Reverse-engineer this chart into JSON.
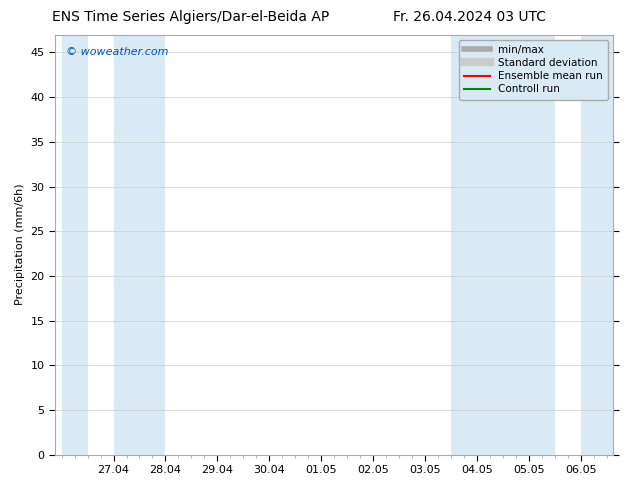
{
  "title_left": "ENS Time Series Algiers/Dar-el-Beida AP",
  "title_right": "Fr. 26.04.2024 03 UTC",
  "ylabel": "Precipitation (mm/6h)",
  "xlabel": "",
  "ylim": [
    0,
    47
  ],
  "yticks": [
    0,
    5,
    10,
    15,
    20,
    25,
    30,
    35,
    40,
    45
  ],
  "xtick_labels": [
    "27.04",
    "28.04",
    "29.04",
    "30.04",
    "01.05",
    "02.05",
    "03.05",
    "04.05",
    "05.05",
    "06.05"
  ],
  "xtick_positions": [
    1,
    2,
    3,
    4,
    5,
    6,
    7,
    8,
    9,
    10
  ],
  "xlim": [
    -0.125,
    10.625
  ],
  "watermark": "© woweather.com",
  "watermark_color": "#0055bb",
  "background_color": "#ffffff",
  "plot_bg_color": "#ffffff",
  "shaded_bands": [
    [
      0.0,
      0.5
    ],
    [
      1.0,
      2.0
    ],
    [
      7.5,
      8.5
    ],
    [
      8.5,
      9.5
    ],
    [
      10.0,
      10.625
    ]
  ],
  "shaded_color": "#daeaf5",
  "legend_items": [
    {
      "label": "min/max",
      "color": "#aaaaaa",
      "linewidth": 4
    },
    {
      "label": "Standard deviation",
      "color": "#cccccc",
      "linewidth": 6
    },
    {
      "label": "Ensemble mean run",
      "color": "#ff0000",
      "linewidth": 1.5
    },
    {
      "label": "Controll run",
      "color": "#008800",
      "linewidth": 1.5
    }
  ],
  "title_fontsize": 10,
  "tick_fontsize": 8,
  "ylabel_fontsize": 8,
  "legend_fontsize": 7.5,
  "grid_color": "#cccccc",
  "spine_color": "#aaaaaa"
}
